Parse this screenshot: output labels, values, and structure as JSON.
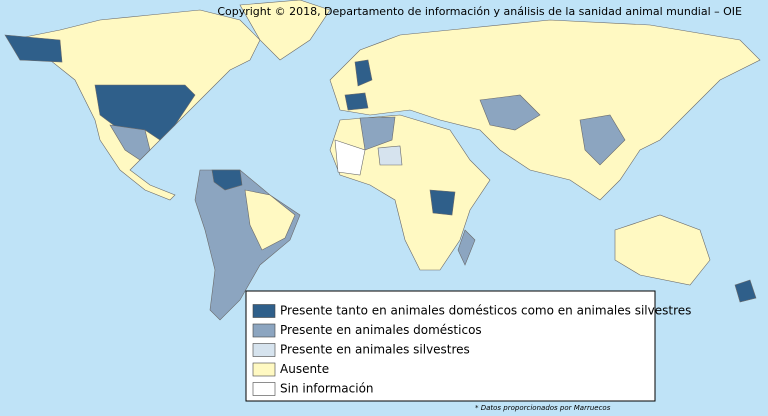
{
  "copyright": "Copyright © 2018, Departamento de información y análisis de la sanidad animal mundial – OIE",
  "legend": [
    {
      "label": "Presente tanto en animales domésticos como en animales silvestres",
      "color": "#2f5f8a"
    },
    {
      "label": "Presente en animales domésticos",
      "color": "#8ca5c0"
    },
    {
      "label": "Presente en animales silvestres",
      "color": "#d6e3ee"
    },
    {
      "label": "Ausente",
      "color": "#fff9c2"
    },
    {
      "label": "Sin información",
      "color": "#ffffff"
    }
  ],
  "footnote": "* Datos proporcionados por Marruecos"
}
